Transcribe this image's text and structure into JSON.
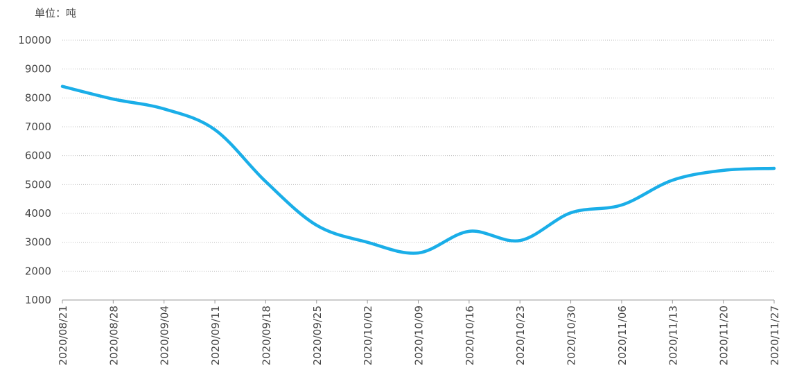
{
  "chart_data": {
    "type": "line",
    "unit_label": "单位：吨",
    "categories": [
      "2020/08/21",
      "2020/08/28",
      "2020/09/04",
      "2020/09/11",
      "2020/09/18",
      "2020/09/25",
      "2020/10/02",
      "2020/10/09",
      "2020/10/16",
      "2020/10/23",
      "2020/10/30",
      "2020/11/06",
      "2020/11/13",
      "2020/11/20",
      "2020/11/27"
    ],
    "series": [
      {
        "color": "#1aaee8",
        "values": [
          8400,
          7960,
          7620,
          6900,
          5100,
          3590,
          3000,
          2630,
          3380,
          3060,
          4020,
          4290,
          5150,
          5490,
          5560
        ]
      }
    ],
    "ylim": [
      1000,
      10000
    ],
    "yticks": [
      1000,
      2000,
      3000,
      4000,
      5000,
      6000,
      7000,
      8000,
      9000,
      10000
    ],
    "grid": true
  }
}
